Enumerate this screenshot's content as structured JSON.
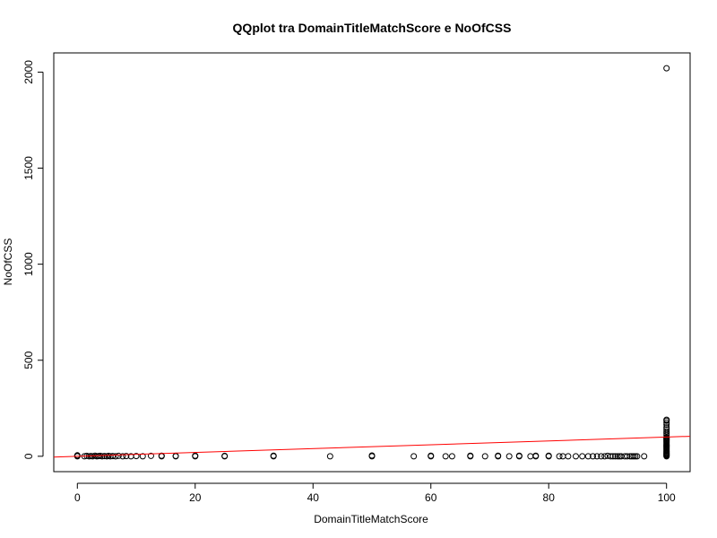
{
  "chart_data": {
    "type": "scatter",
    "title": "QQplot tra DomainTitleMatchScore e NoOfCSS",
    "xlabel": "DomainTitleMatchScore",
    "ylabel": "NoOfCSS",
    "xlim": [
      -4,
      104
    ],
    "ylim": [
      -80,
      2100
    ],
    "xticks": [
      0,
      20,
      40,
      60,
      80,
      100
    ],
    "yticks": [
      0,
      500,
      1000,
      1500,
      2000
    ],
    "grid": false,
    "legend": "none",
    "series": [
      {
        "x": [
          0,
          0,
          0,
          1.2,
          1.6,
          2.0,
          2.3,
          2.6,
          3.0,
          3.3,
          3.6,
          3.9,
          4.2,
          4.6,
          5.0,
          5.3,
          5.6,
          6.0,
          6.5,
          7.0,
          7.7,
          8.3,
          9.1,
          10,
          11.1,
          12.5,
          14.3,
          14.3,
          16.7,
          16.7,
          20,
          20,
          25,
          25,
          33.3,
          33.3,
          42.9,
          50,
          50,
          57.1,
          60,
          60,
          62.5,
          63.6,
          66.7,
          66.7,
          69.2,
          71.4,
          71.4,
          73.3,
          75,
          75,
          76.9,
          77.8,
          77.8,
          80,
          80,
          81.8,
          82.4,
          83.3,
          84.6,
          85.7,
          86.7,
          87.5,
          88.2,
          88.9,
          89.5,
          90,
          90.5,
          90.9,
          91.3,
          91.7,
          92,
          92.3,
          92.9,
          93.3,
          93.8,
          94.1,
          94.4,
          94.7,
          95,
          96.2,
          100,
          100,
          100,
          100,
          100,
          100,
          100,
          100,
          100,
          100,
          100,
          100,
          100,
          100,
          100,
          100,
          100,
          100,
          100,
          100,
          100,
          100,
          100,
          100,
          100,
          100,
          100,
          100,
          100,
          100,
          100,
          100
        ],
        "y": [
          0,
          2,
          5,
          0,
          2,
          0,
          1,
          0,
          3,
          0,
          1,
          2,
          0,
          1,
          0,
          2,
          0,
          1,
          0,
          2,
          0,
          1,
          0,
          1,
          0,
          2,
          0,
          3,
          0,
          2,
          0,
          3,
          0,
          2,
          0,
          3,
          0,
          0,
          4,
          0,
          0,
          3,
          0,
          0,
          0,
          3,
          0,
          0,
          3,
          0,
          0,
          3,
          0,
          0,
          3,
          0,
          3,
          0,
          0,
          0,
          0,
          0,
          0,
          0,
          0,
          0,
          0,
          2,
          0,
          0,
          0,
          0,
          0,
          0,
          0,
          0,
          0,
          0,
          0,
          0,
          0,
          0,
          0,
          4,
          8,
          12,
          16,
          20,
          25,
          30,
          35,
          40,
          45,
          50,
          55,
          60,
          65,
          70,
          75,
          80,
          85,
          90,
          95,
          100,
          110,
          120,
          130,
          140,
          150,
          165,
          175,
          185,
          190,
          2020
        ]
      }
    ],
    "reference_line": {
      "x": [
        -4,
        104
      ],
      "y": [
        -4,
        104
      ]
    },
    "colors": {
      "points": "#000000",
      "reference_line": "#ff0000",
      "axis": "#000000"
    }
  }
}
